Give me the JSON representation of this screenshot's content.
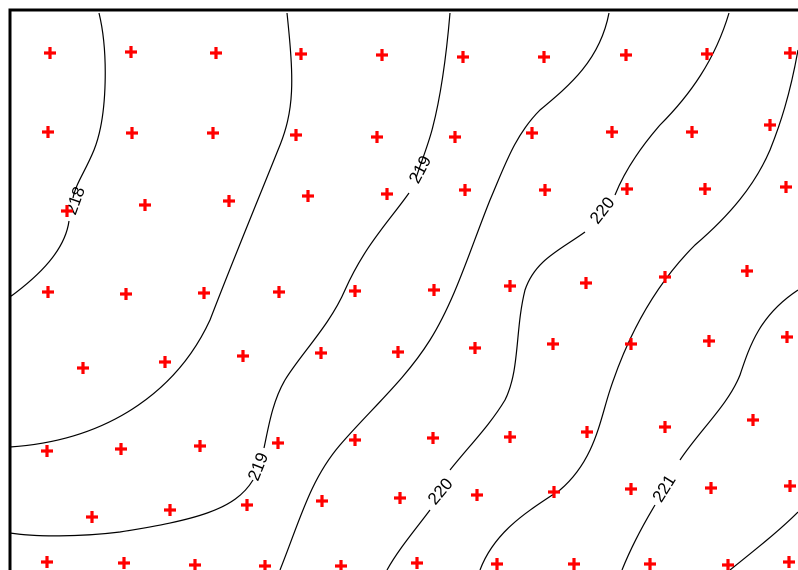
{
  "map": {
    "colors": {
      "background": "#ffffff",
      "contour": "#000000",
      "marker": "#ff0000",
      "frame": "#000000"
    },
    "marker_symbol": "red-plus-icon",
    "contour_labels": {
      "c218": "218",
      "c219_upper": "219",
      "c219_lower": "219",
      "c220_upper": "220",
      "c220_lower": "220",
      "c221": "221"
    }
  }
}
